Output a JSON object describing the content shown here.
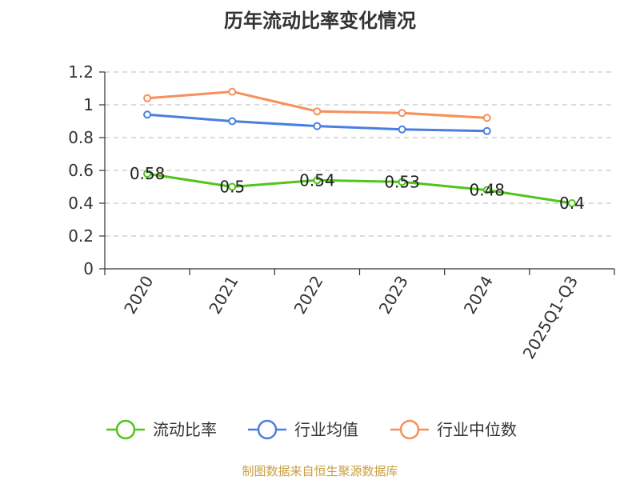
{
  "chart_data": {
    "type": "line",
    "title": "历年流动比率变化情况",
    "categories": [
      "2020",
      "2021",
      "2022",
      "2023",
      "2024",
      "2025Q1-Q3"
    ],
    "ylim": [
      0,
      1.2
    ],
    "yticks": [
      "0",
      "0.2",
      "0.4",
      "0.6",
      "0.8",
      "1",
      "1.2"
    ],
    "grid": true,
    "legend_position": "bottom",
    "series": [
      {
        "name": "流动比率",
        "color": "#52c41a",
        "values": [
          0.58,
          0.5,
          0.54,
          0.53,
          0.48,
          0.4
        ],
        "labels": [
          "0.58",
          "0.5",
          "0.54",
          "0.53",
          "0.48",
          "0.4"
        ]
      },
      {
        "name": "行业均值",
        "color": "#4a7fe0",
        "values": [
          0.94,
          0.9,
          0.87,
          0.85,
          0.84,
          null
        ]
      },
      {
        "name": "行业中位数",
        "color": "#f5905a",
        "values": [
          1.04,
          1.08,
          0.96,
          0.95,
          0.92,
          null
        ]
      }
    ]
  },
  "source": "制图数据来自恒生聚源数据库"
}
